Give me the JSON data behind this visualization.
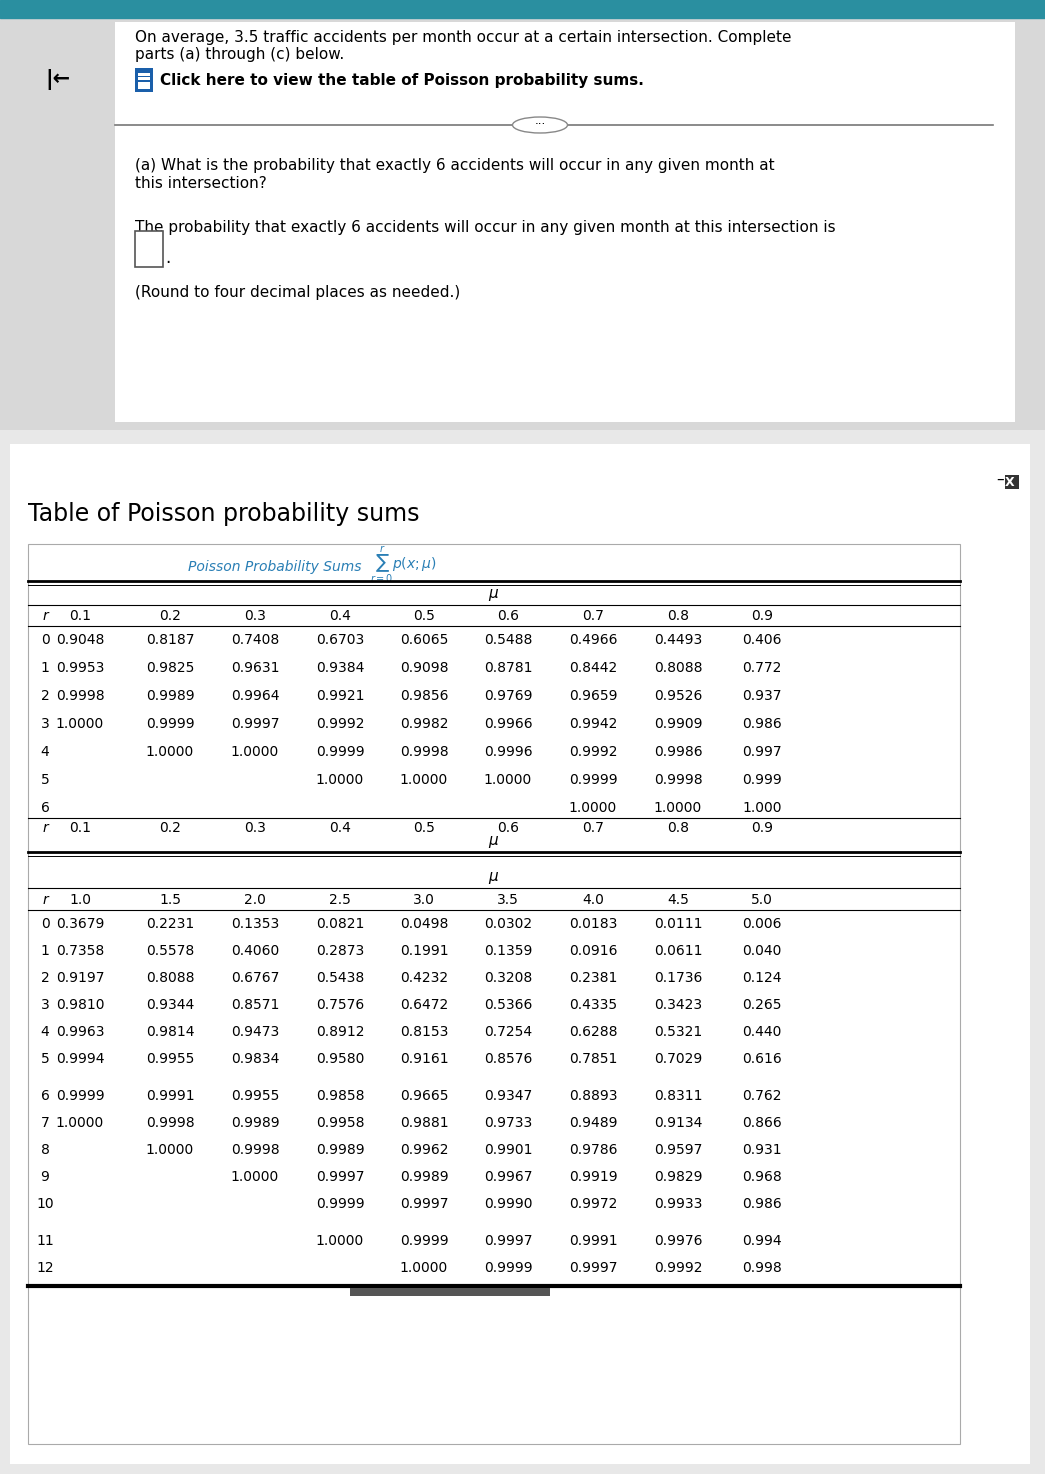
{
  "title_text": "Table of Poisson probability sums",
  "header_text1_line1": "On average, 3.5 traffic accidents per month occur at a certain intersection. Complete",
  "header_text1_line2": "parts (a) through (c) below.",
  "click_text": "Click here to view the table of Poisson probability sums.",
  "question_a_line1": "(a) What is the probability that exactly 6 accidents will occur in any given month at",
  "question_a_line2": "this intersection?",
  "answer_text": "The probability that exactly 6 accidents will occur in any given month at this intersection is",
  "round_text": "(Round to four decimal places as needed.)",
  "bg_color": "#d8d8d8",
  "white_bg": "#ffffff",
  "teal_color": "#2a8fa0",
  "blue_link": "#1a5faa",
  "mu_cols_top": [
    "0.1",
    "0.2",
    "0.3",
    "0.4",
    "0.5",
    "0.6",
    "0.7",
    "0.8",
    "0.9"
  ],
  "table1_rows": [
    [
      "0",
      "0.9048",
      "0.8187",
      "0.7408",
      "0.6703",
      "0.6065",
      "0.5488",
      "0.4966",
      "0.4493",
      "0.406"
    ],
    [
      "1",
      "0.9953",
      "0.9825",
      "0.9631",
      "0.9384",
      "0.9098",
      "0.8781",
      "0.8442",
      "0.8088",
      "0.772"
    ],
    [
      "2",
      "0.9998",
      "0.9989",
      "0.9964",
      "0.9921",
      "0.9856",
      "0.9769",
      "0.9659",
      "0.9526",
      "0.937"
    ],
    [
      "3",
      "1.0000",
      "0.9999",
      "0.9997",
      "0.9992",
      "0.9982",
      "0.9966",
      "0.9942",
      "0.9909",
      "0.986"
    ],
    [
      "4",
      "",
      "1.0000",
      "1.0000",
      "0.9999",
      "0.9998",
      "0.9996",
      "0.9992",
      "0.9986",
      "0.997"
    ],
    [
      "5",
      "",
      "",
      "",
      "1.0000",
      "1.0000",
      "1.0000",
      "0.9999",
      "0.9998",
      "0.999"
    ],
    [
      "6",
      "",
      "",
      "",
      "",
      "",
      "",
      "1.0000",
      "1.0000",
      "1.000"
    ]
  ],
  "mu_cols_bot": [
    "1.0",
    "1.5",
    "2.0",
    "2.5",
    "3.0",
    "3.5",
    "4.0",
    "4.5",
    "5.0"
  ],
  "table2_rows": [
    [
      "0",
      "0.3679",
      "0.2231",
      "0.1353",
      "0.0821",
      "0.0498",
      "0.0302",
      "0.0183",
      "0.0111",
      "0.006"
    ],
    [
      "1",
      "0.7358",
      "0.5578",
      "0.4060",
      "0.2873",
      "0.1991",
      "0.1359",
      "0.0916",
      "0.0611",
      "0.040"
    ],
    [
      "2",
      "0.9197",
      "0.8088",
      "0.6767",
      "0.5438",
      "0.4232",
      "0.3208",
      "0.2381",
      "0.1736",
      "0.124"
    ],
    [
      "3",
      "0.9810",
      "0.9344",
      "0.8571",
      "0.7576",
      "0.6472",
      "0.5366",
      "0.4335",
      "0.3423",
      "0.265"
    ],
    [
      "4",
      "0.9963",
      "0.9814",
      "0.9473",
      "0.8912",
      "0.8153",
      "0.7254",
      "0.6288",
      "0.5321",
      "0.440"
    ],
    [
      "5",
      "0.9994",
      "0.9955",
      "0.9834",
      "0.9580",
      "0.9161",
      "0.8576",
      "0.7851",
      "0.7029",
      "0.616"
    ],
    [
      "6",
      "0.9999",
      "0.9991",
      "0.9955",
      "0.9858",
      "0.9665",
      "0.9347",
      "0.8893",
      "0.8311",
      "0.762"
    ],
    [
      "7",
      "1.0000",
      "0.9998",
      "0.9989",
      "0.9958",
      "0.9881",
      "0.9733",
      "0.9489",
      "0.9134",
      "0.866"
    ],
    [
      "8",
      "",
      "1.0000",
      "0.9998",
      "0.9989",
      "0.9962",
      "0.9901",
      "0.9786",
      "0.9597",
      "0.931"
    ],
    [
      "9",
      "",
      "",
      "1.0000",
      "0.9997",
      "0.9989",
      "0.9967",
      "0.9919",
      "0.9829",
      "0.968"
    ],
    [
      "10",
      "",
      "",
      "",
      "0.9999",
      "0.9997",
      "0.9990",
      "0.9972",
      "0.9933",
      "0.986"
    ],
    [
      "11",
      "",
      "",
      "",
      "1.0000",
      "0.9999",
      "0.9997",
      "0.9991",
      "0.9976",
      "0.994"
    ],
    [
      "12",
      "",
      "",
      "",
      "",
      "1.0000",
      "0.9999",
      "0.9997",
      "0.9992",
      "0.998"
    ]
  ]
}
